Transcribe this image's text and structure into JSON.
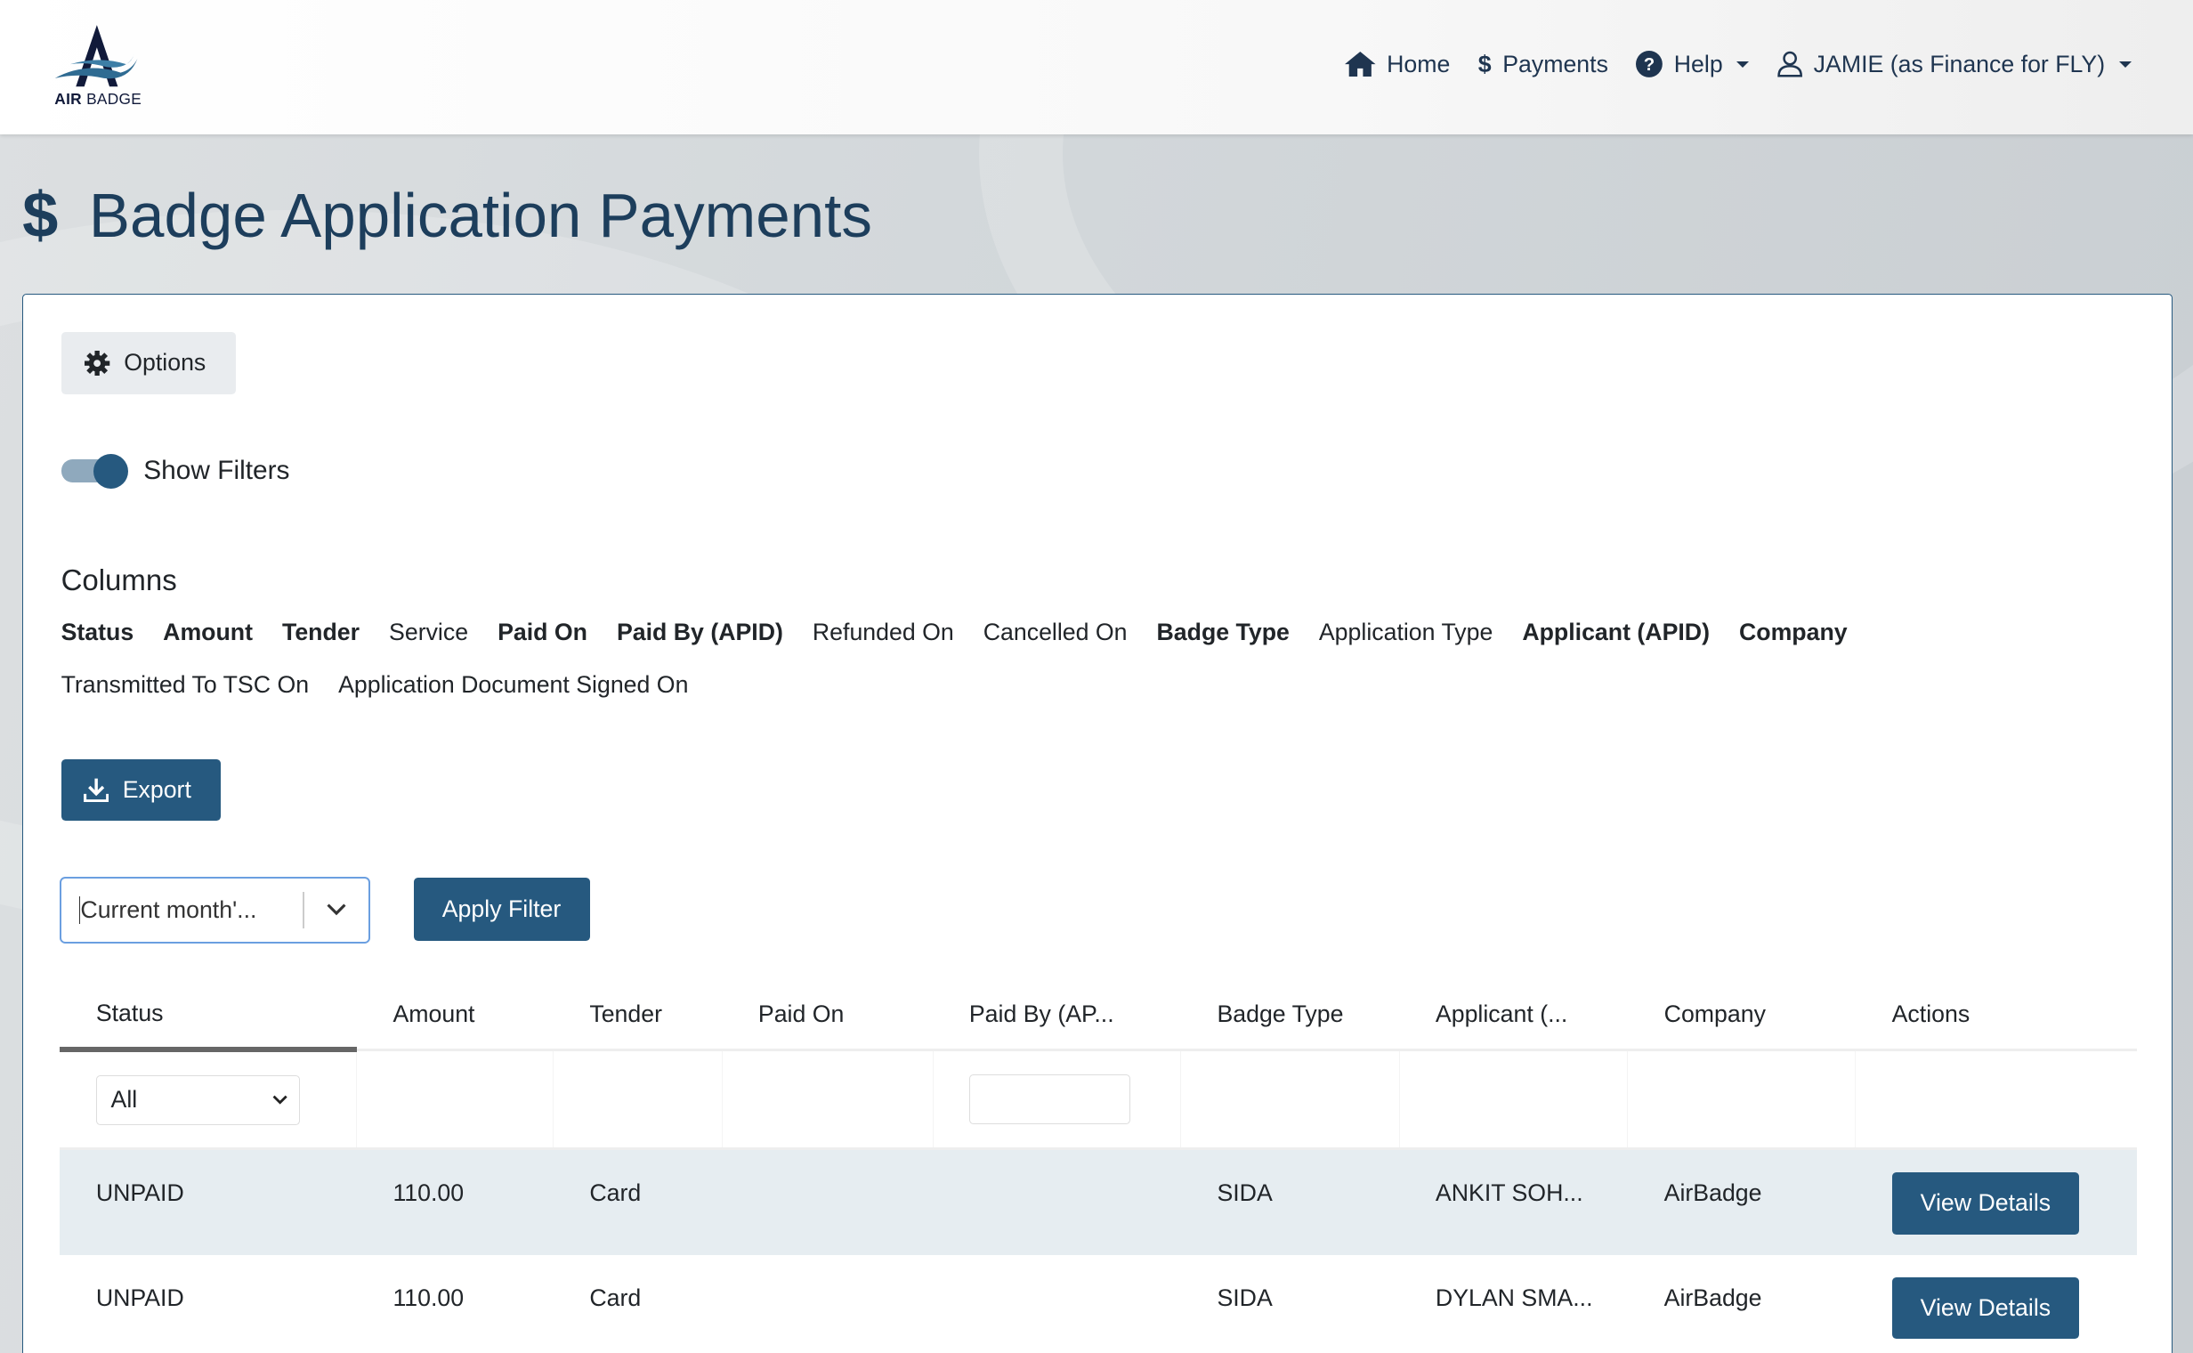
{
  "brand": {
    "logo_text_bold": "AIR",
    "logo_text": "BADGE",
    "accent": "#26597f"
  },
  "nav": {
    "home": "Home",
    "payments": "Payments",
    "help": "Help",
    "user": "JAMIE (as Finance for FLY)"
  },
  "page": {
    "title": "Badge Application Payments"
  },
  "options_label": "Options",
  "show_filters": {
    "label": "Show Filters",
    "on": true
  },
  "columns": {
    "title": "Columns",
    "items": [
      {
        "label": "Status",
        "selected": true
      },
      {
        "label": "Amount",
        "selected": true
      },
      {
        "label": "Tender",
        "selected": true
      },
      {
        "label": "Service",
        "selected": false
      },
      {
        "label": "Paid On",
        "selected": true
      },
      {
        "label": "Paid By (APID)",
        "selected": true
      },
      {
        "label": "Refunded On",
        "selected": false
      },
      {
        "label": "Cancelled On",
        "selected": false
      },
      {
        "label": "Badge Type",
        "selected": true
      },
      {
        "label": "Application Type",
        "selected": false
      },
      {
        "label": "Applicant (APID)",
        "selected": true
      },
      {
        "label": "Company",
        "selected": true
      },
      {
        "label": "Transmitted To TSC On",
        "selected": false
      },
      {
        "label": "Application Document Signed On",
        "selected": false
      }
    ]
  },
  "export_label": "Export",
  "filter": {
    "value": "Current month'...",
    "apply_label": "Apply Filter"
  },
  "table": {
    "headers": [
      "Status",
      "Amount",
      "Tender",
      "Paid On",
      "Paid By (AP...",
      "Badge Type",
      "Applicant (...",
      "Company",
      "Actions"
    ],
    "status_filter": "All",
    "rows": [
      {
        "status": "UNPAID",
        "amount": "110.00",
        "tender": "Card",
        "paid_on": "",
        "paid_by": "",
        "badge_type": "SIDA",
        "applicant": "ANKIT SOH...",
        "company": "AirBadge",
        "action": "View Details"
      },
      {
        "status": "UNPAID",
        "amount": "110.00",
        "tender": "Card",
        "paid_on": "",
        "paid_by": "",
        "badge_type": "SIDA",
        "applicant": "DYLAN SMA...",
        "company": "AirBadge",
        "action": "View Details"
      }
    ]
  }
}
